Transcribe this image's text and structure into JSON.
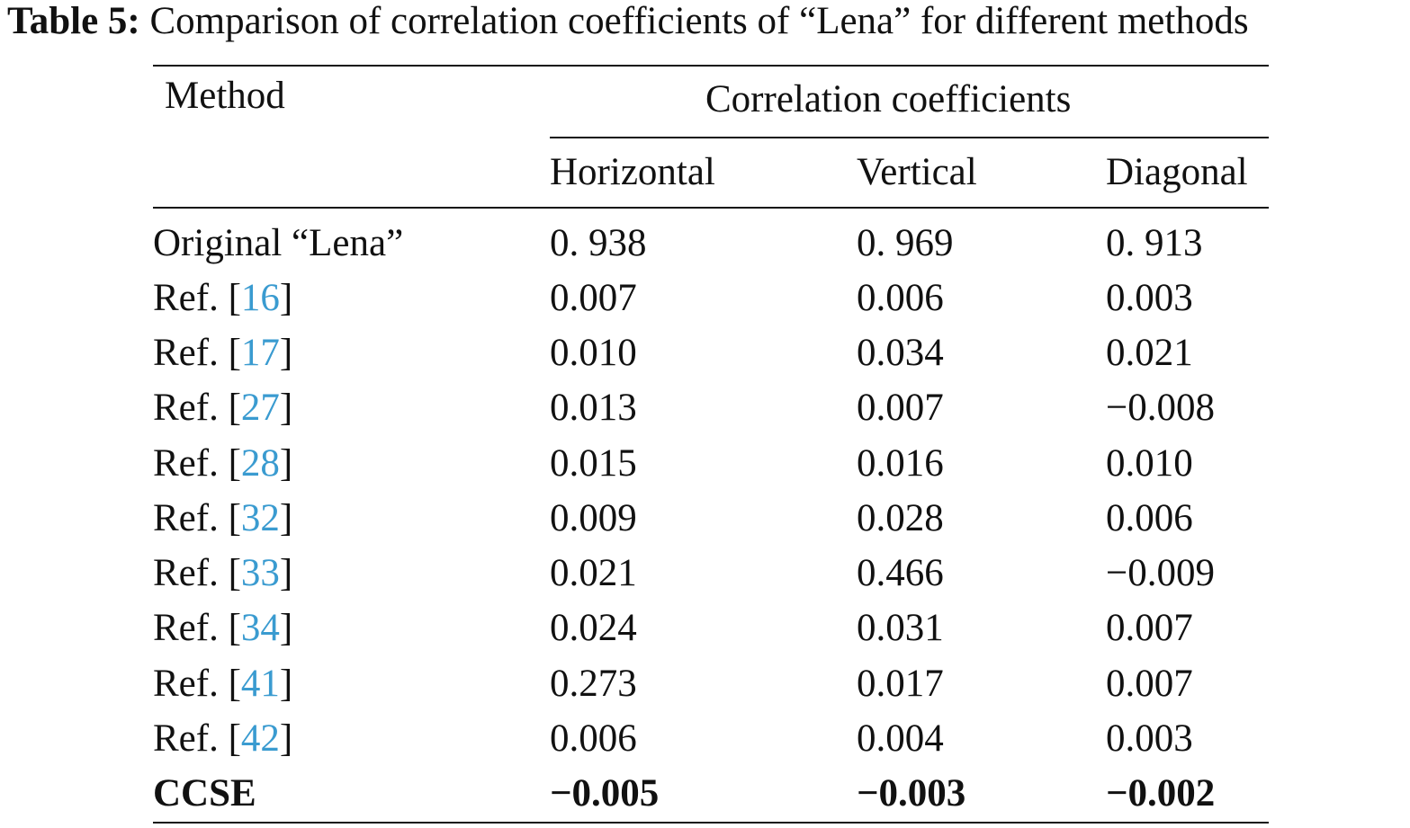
{
  "caption": {
    "label": "Table 5:",
    "text": "Comparison of correlation coefficients of “Lena” for different methods"
  },
  "header": {
    "method": "Method",
    "group": "Correlation coefficients",
    "columns": [
      "Horizontal",
      "Vertical",
      "Diagonal"
    ]
  },
  "colors": {
    "text": "#111111",
    "ref_link": "#3a9bd0"
  },
  "rows": [
    {
      "method": "Original “Lena”",
      "values": [
        "0. 938",
        "0. 969",
        "0. 913"
      ]
    },
    {
      "method_prefix": "Ref. [",
      "ref": "16",
      "method_suffix": "]",
      "values": [
        "0.007",
        "0.006",
        "0.003"
      ]
    },
    {
      "method_prefix": "Ref. [",
      "ref": "17",
      "method_suffix": "]",
      "values": [
        "0.010",
        "0.034",
        "0.021"
      ]
    },
    {
      "method_prefix": "Ref. [",
      "ref": "27",
      "method_suffix": "]",
      "values": [
        "0.013",
        "0.007",
        "−0.008"
      ]
    },
    {
      "method_prefix": "Ref. [",
      "ref": "28",
      "method_suffix": "]",
      "values": [
        "0.015",
        "0.016",
        "0.010"
      ]
    },
    {
      "method_prefix": "Ref. [",
      "ref": "32",
      "method_suffix": "]",
      "values": [
        "0.009",
        "0.028",
        "0.006"
      ]
    },
    {
      "method_prefix": "Ref. [",
      "ref": "33",
      "method_suffix": "]",
      "values": [
        "0.021",
        "0.466",
        "−0.009"
      ]
    },
    {
      "method_prefix": "Ref. [",
      "ref": "34",
      "method_suffix": "]",
      "values": [
        "0.024",
        "0.031",
        "0.007"
      ]
    },
    {
      "method_prefix": "Ref. [",
      "ref": "41",
      "method_suffix": "]",
      "values": [
        "0.273",
        "0.017",
        "0.007"
      ]
    },
    {
      "method_prefix": "Ref. [",
      "ref": "42",
      "method_suffix": "]",
      "values": [
        "0.006",
        "0.004",
        "0.003"
      ]
    },
    {
      "method": "CCSE",
      "values": [
        "−0.005",
        "−0.003",
        "−0.002"
      ],
      "bold": true
    }
  ]
}
